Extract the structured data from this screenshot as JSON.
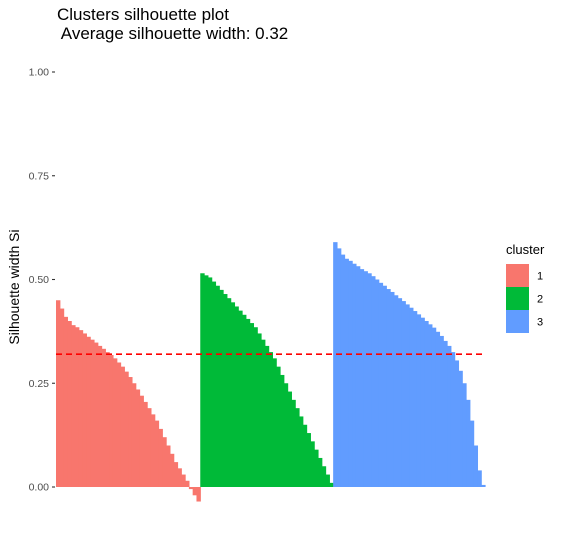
{
  "chart_data": {
    "type": "bar",
    "title": "Clusters silhouette plot",
    "subtitle": " Average silhouette width: 0.32",
    "xlabel": "",
    "ylabel": "Silhouette width Si",
    "ylim": [
      -0.04,
      1.0
    ],
    "y_ticks": [
      "0.00",
      "0.25",
      "0.50",
      "0.75",
      "1.00"
    ],
    "y_tick_values": [
      0,
      0.25,
      0.5,
      0.75,
      1.0
    ],
    "grid": false,
    "average_silhouette": 0.32,
    "reference_line_color": "#FF0000",
    "legend": {
      "title": "cluster",
      "position": "right"
    },
    "series": [
      {
        "name": "1",
        "color": "#F8766D",
        "values": [
          0.45,
          0.43,
          0.41,
          0.4,
          0.39,
          0.385,
          0.378,
          0.37,
          0.362,
          0.355,
          0.348,
          0.34,
          0.333,
          0.325,
          0.318,
          0.31,
          0.3,
          0.29,
          0.278,
          0.265,
          0.25,
          0.235,
          0.22,
          0.205,
          0.19,
          0.175,
          0.16,
          0.14,
          0.12,
          0.1,
          0.08,
          0.06,
          0.045,
          0.03,
          0.015,
          -0.005,
          -0.02,
          -0.035
        ]
      },
      {
        "name": "2",
        "color": "#00BA38",
        "values": [
          0.515,
          0.51,
          0.505,
          0.495,
          0.485,
          0.475,
          0.465,
          0.455,
          0.445,
          0.435,
          0.425,
          0.415,
          0.405,
          0.395,
          0.385,
          0.37,
          0.355,
          0.34,
          0.325,
          0.31,
          0.29,
          0.27,
          0.25,
          0.23,
          0.21,
          0.19,
          0.17,
          0.15,
          0.13,
          0.11,
          0.09,
          0.07,
          0.05,
          0.03,
          0.01
        ]
      },
      {
        "name": "3",
        "color": "#619CFF",
        "values": [
          0.59,
          0.575,
          0.56,
          0.55,
          0.545,
          0.538,
          0.532,
          0.525,
          0.52,
          0.515,
          0.508,
          0.5,
          0.492,
          0.485,
          0.477,
          0.47,
          0.462,
          0.455,
          0.448,
          0.44,
          0.432,
          0.424,
          0.416,
          0.408,
          0.4,
          0.392,
          0.384,
          0.374,
          0.364,
          0.352,
          0.34,
          0.325,
          0.305,
          0.28,
          0.25,
          0.21,
          0.16,
          0.1,
          0.04,
          0.005
        ]
      }
    ]
  }
}
